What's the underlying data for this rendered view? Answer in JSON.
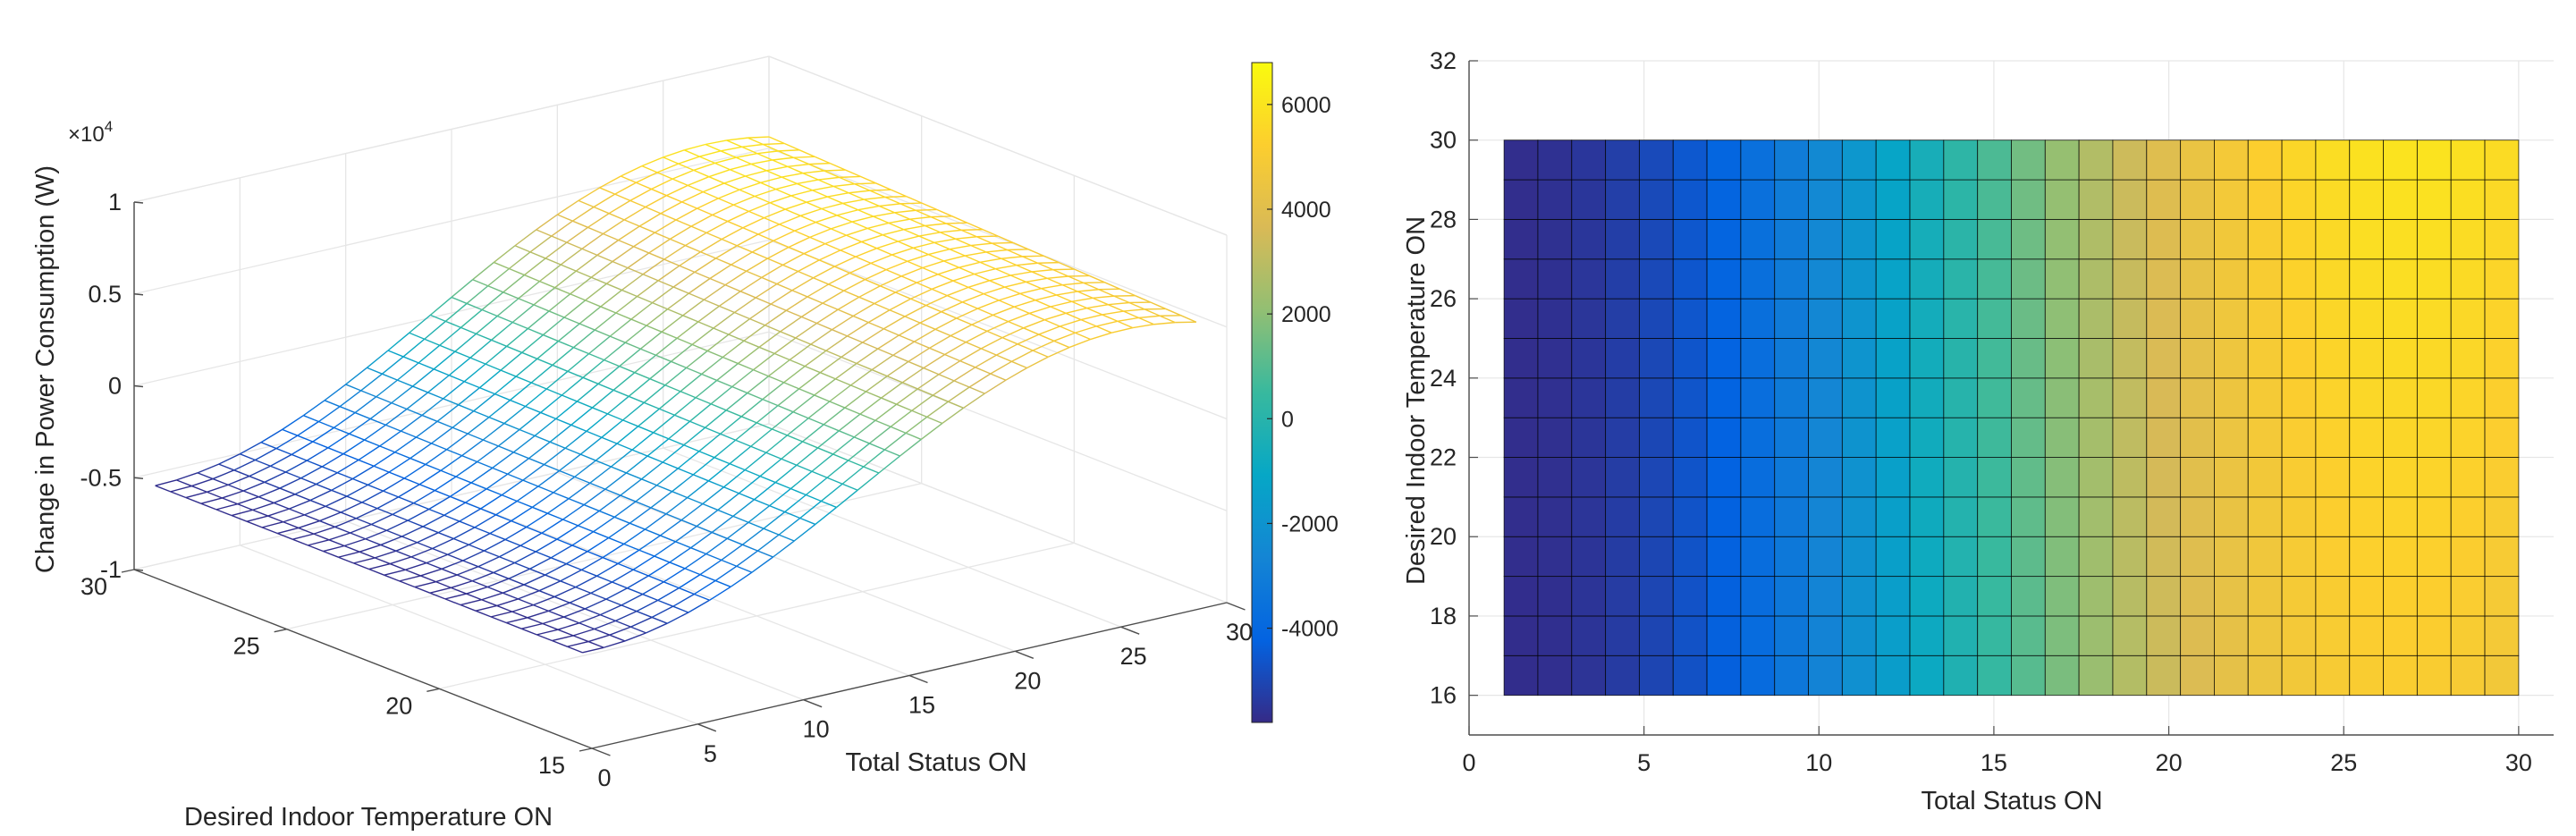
{
  "chart_data": [
    {
      "type": "surface",
      "xlabel": "Total Status ON",
      "ylabel": "Desired Indoor Temperature ON",
      "zlabel": "Change in Power Consumption (W)",
      "z_exponent_label": "×10",
      "z_exponent": "4",
      "x_range": [
        1,
        30
      ],
      "y_range": [
        16,
        30
      ],
      "xlim": [
        0,
        30
      ],
      "ylim": [
        15,
        30
      ],
      "zlim": [
        -1,
        1
      ],
      "z_scale": 10000,
      "xticks": [
        "0",
        "5",
        "10",
        "15",
        "20",
        "25",
        "30"
      ],
      "yticks": [
        "15",
        "20",
        "25",
        "30"
      ],
      "zticks": [
        "-1",
        "-0.5",
        "0",
        "0.5",
        "1"
      ],
      "style": "wireframe mesh colored by value",
      "model": "z(x,y) = -5700 + 11700 * 0.5*(1-cos(pi*(x-1)/26)) - 1000*(30-y)/14 * (x-1)/29, peak near x=26",
      "grid": true,
      "colorbar": {
        "range": [
          -5800,
          6800
        ],
        "ticks": [
          "-4000",
          "-2000",
          "0",
          "2000",
          "4000",
          "6000"
        ],
        "tick_values": [
          -4000,
          -2000,
          0,
          2000,
          4000,
          6000
        ],
        "colormap": "parula"
      }
    },
    {
      "type": "heatmap",
      "xlabel": "Total Status ON",
      "ylabel": "Desired Indoor Temperature ON",
      "x_range": [
        1,
        30
      ],
      "y_range": [
        16,
        30
      ],
      "xlim": [
        0,
        31
      ],
      "ylim": [
        15,
        32
      ],
      "xticks": [
        "0",
        "5",
        "10",
        "15",
        "20",
        "25",
        "30"
      ],
      "xtick_values": [
        0,
        5,
        10,
        15,
        20,
        25,
        30
      ],
      "yticks": [
        "16",
        "18",
        "20",
        "22",
        "24",
        "26",
        "28",
        "30",
        "32"
      ],
      "ytick_values": [
        16,
        18,
        20,
        22,
        24,
        26,
        28,
        30,
        32
      ],
      "style": "faceted pcolor, colormap parula, same values as surface",
      "grid": true
    }
  ],
  "colors": {
    "parula": [
      "#352a87",
      "#0363e1",
      "#1485d4",
      "#06a7c6",
      "#38b99e",
      "#92bf73",
      "#d9ba56",
      "#fcce2e",
      "#f9fb0e"
    ],
    "axis": "#262626",
    "grid": "#e6e6e6"
  }
}
